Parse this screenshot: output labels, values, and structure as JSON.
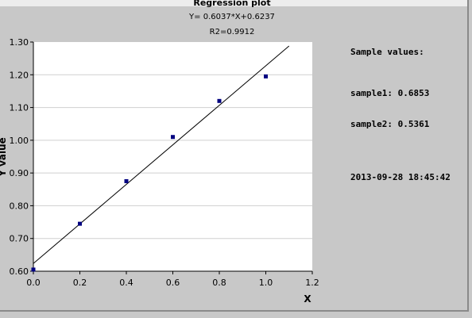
{
  "chart_data": {
    "type": "scatter",
    "title": "Regression plot",
    "equation": "Y= 0.6037*X+0.6237",
    "r2": "R2=0.9912",
    "xlabel": "X",
    "ylabel": "Y value",
    "xlim": [
      0,
      1.2
    ],
    "ylim": [
      0.6,
      1.3
    ],
    "x_ticks": [
      "0.0",
      "0.2",
      "0.4",
      "0.6",
      "0.8",
      "1.0",
      "1.2"
    ],
    "y_ticks": [
      "0.60",
      "0.70",
      "0.80",
      "0.90",
      "1.00",
      "1.10",
      "1.20",
      "1.30"
    ],
    "grid": "horizontal",
    "points": [
      {
        "x": 0.0,
        "y": 0.605
      },
      {
        "x": 0.2,
        "y": 0.745
      },
      {
        "x": 0.4,
        "y": 0.875
      },
      {
        "x": 0.6,
        "y": 1.01
      },
      {
        "x": 0.8,
        "y": 1.12
      },
      {
        "x": 1.0,
        "y": 1.195
      }
    ],
    "regression": {
      "slope": 0.6037,
      "intercept": 0.6237,
      "x_start": 0.0,
      "x_end": 1.1
    },
    "point_color": "#000080",
    "line_color": "#000000"
  },
  "side_panel": {
    "heading": "Sample values:",
    "sample1": "sample1: 0.6853",
    "sample2": "sample2: 0.5361",
    "timestamp": "2013-09-28 18:45:42"
  }
}
